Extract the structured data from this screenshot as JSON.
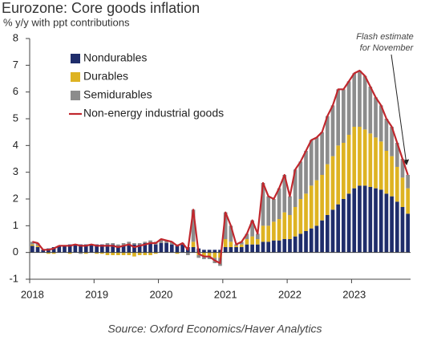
{
  "chart_data": {
    "type": "bar",
    "stacked": true,
    "title": "Eurozone: Core goods inflation",
    "subtitle": "% y/y with ppt contributions",
    "annotation": [
      "Flash estimate",
      "for November"
    ],
    "source": "Source: Oxford Economics/Haver Analytics",
    "categories": [
      "2018",
      null,
      null,
      null,
      null,
      null,
      null,
      null,
      null,
      null,
      null,
      null,
      "2019",
      null,
      null,
      null,
      null,
      null,
      null,
      null,
      null,
      null,
      null,
      null,
      "2020",
      null,
      null,
      null,
      null,
      null,
      null,
      null,
      null,
      null,
      null,
      null,
      "2021",
      null,
      null,
      null,
      null,
      null,
      null,
      null,
      null,
      null,
      null,
      null,
      "2022",
      null,
      null,
      null,
      null,
      null,
      null,
      null,
      null,
      null,
      null,
      null,
      "2023",
      null,
      null,
      null,
      null,
      null,
      null,
      null,
      null,
      null,
      null
    ],
    "series": [
      {
        "name": "Nondurables",
        "color": "#1f2d6b",
        "values": [
          0.25,
          0.2,
          0.1,
          0.15,
          0.2,
          0.25,
          0.25,
          0.3,
          0.3,
          0.3,
          0.3,
          0.3,
          0.3,
          0.3,
          0.3,
          0.3,
          0.25,
          0.25,
          0.3,
          0.3,
          0.3,
          0.35,
          0.35,
          0.3,
          0.35,
          0.35,
          0.3,
          0.25,
          0.3,
          0.2,
          0.2,
          0.15,
          0.1,
          0.1,
          0.1,
          0.1,
          0.2,
          0.2,
          0.2,
          0.2,
          0.3,
          0.3,
          0.3,
          0.4,
          0.4,
          0.45,
          0.45,
          0.5,
          0.5,
          0.6,
          0.7,
          0.8,
          0.9,
          1.0,
          1.2,
          1.4,
          1.6,
          1.8,
          2.0,
          2.2,
          2.4,
          2.5,
          2.5,
          2.45,
          2.4,
          2.35,
          2.2,
          2.1,
          1.9,
          1.7,
          1.45
        ]
      },
      {
        "name": "Durables",
        "color": "#deb322",
        "values": [
          0.05,
          0.05,
          0.0,
          -0.05,
          -0.05,
          0.0,
          0.0,
          -0.05,
          0.0,
          0.0,
          -0.05,
          0.0,
          -0.05,
          -0.05,
          -0.1,
          -0.1,
          -0.1,
          -0.1,
          -0.1,
          -0.15,
          -0.1,
          -0.1,
          -0.1,
          -0.05,
          0.0,
          0.0,
          0.0,
          -0.05,
          0.0,
          0.0,
          0.2,
          -0.1,
          -0.15,
          -0.15,
          -0.2,
          -0.2,
          0.3,
          0.2,
          0.05,
          0.1,
          0.2,
          0.3,
          0.2,
          0.6,
          0.6,
          0.7,
          0.8,
          1.0,
          0.9,
          1.1,
          1.3,
          1.4,
          1.6,
          1.7,
          1.7,
          1.9,
          2.0,
          2.2,
          2.1,
          2.2,
          2.3,
          2.2,
          2.1,
          2.0,
          1.9,
          1.8,
          1.6,
          1.5,
          1.3,
          1.1,
          0.95
        ]
      },
      {
        "name": "Semidurables",
        "color": "#8c8c8c",
        "values": [
          0.1,
          0.1,
          0.0,
          0.0,
          0.0,
          0.0,
          0.0,
          0.0,
          0.0,
          -0.05,
          0.0,
          0.0,
          0.0,
          0.0,
          0.05,
          0.05,
          0.05,
          0.1,
          0.1,
          0.05,
          0.05,
          0.05,
          0.1,
          0.1,
          0.15,
          0.1,
          0.1,
          0.05,
          0.05,
          -0.1,
          1.2,
          -0.1,
          -0.1,
          -0.1,
          -0.2,
          -0.3,
          1.0,
          0.6,
          0.05,
          0.1,
          0.2,
          0.6,
          0.2,
          1.6,
          1.1,
          0.85,
          1.15,
          1.4,
          0.7,
          1.4,
          1.4,
          1.6,
          1.7,
          1.6,
          1.6,
          1.8,
          1.9,
          2.1,
          2.0,
          2.0,
          2.0,
          2.1,
          2.0,
          1.75,
          1.5,
          1.35,
          1.2,
          1.1,
          0.9,
          0.7,
          0.5
        ]
      },
      {
        "name": "Non-energy industrial goods",
        "color": "#c0272d",
        "type": "line",
        "values": [
          0.4,
          0.35,
          0.1,
          0.1,
          0.15,
          0.25,
          0.25,
          0.25,
          0.3,
          0.25,
          0.25,
          0.3,
          0.25,
          0.25,
          0.25,
          0.25,
          0.2,
          0.25,
          0.3,
          0.2,
          0.25,
          0.3,
          0.35,
          0.35,
          0.5,
          0.45,
          0.4,
          0.25,
          0.35,
          0.1,
          1.6,
          -0.05,
          -0.15,
          -0.15,
          -0.3,
          -0.4,
          1.5,
          1.0,
          0.3,
          0.4,
          0.7,
          1.2,
          0.7,
          2.6,
          2.1,
          2.0,
          2.4,
          2.9,
          2.1,
          3.1,
          3.4,
          3.8,
          4.2,
          4.3,
          4.5,
          5.1,
          5.5,
          6.1,
          6.1,
          6.4,
          6.7,
          6.8,
          6.6,
          6.2,
          5.8,
          5.5,
          5.0,
          4.7,
          4.1,
          3.5,
          2.9
        ]
      }
    ],
    "ylim": [
      -1,
      8
    ],
    "yticks": [
      -1,
      0,
      1,
      2,
      3,
      4,
      5,
      6,
      7,
      8
    ],
    "grid": false,
    "legend": "top-left"
  }
}
